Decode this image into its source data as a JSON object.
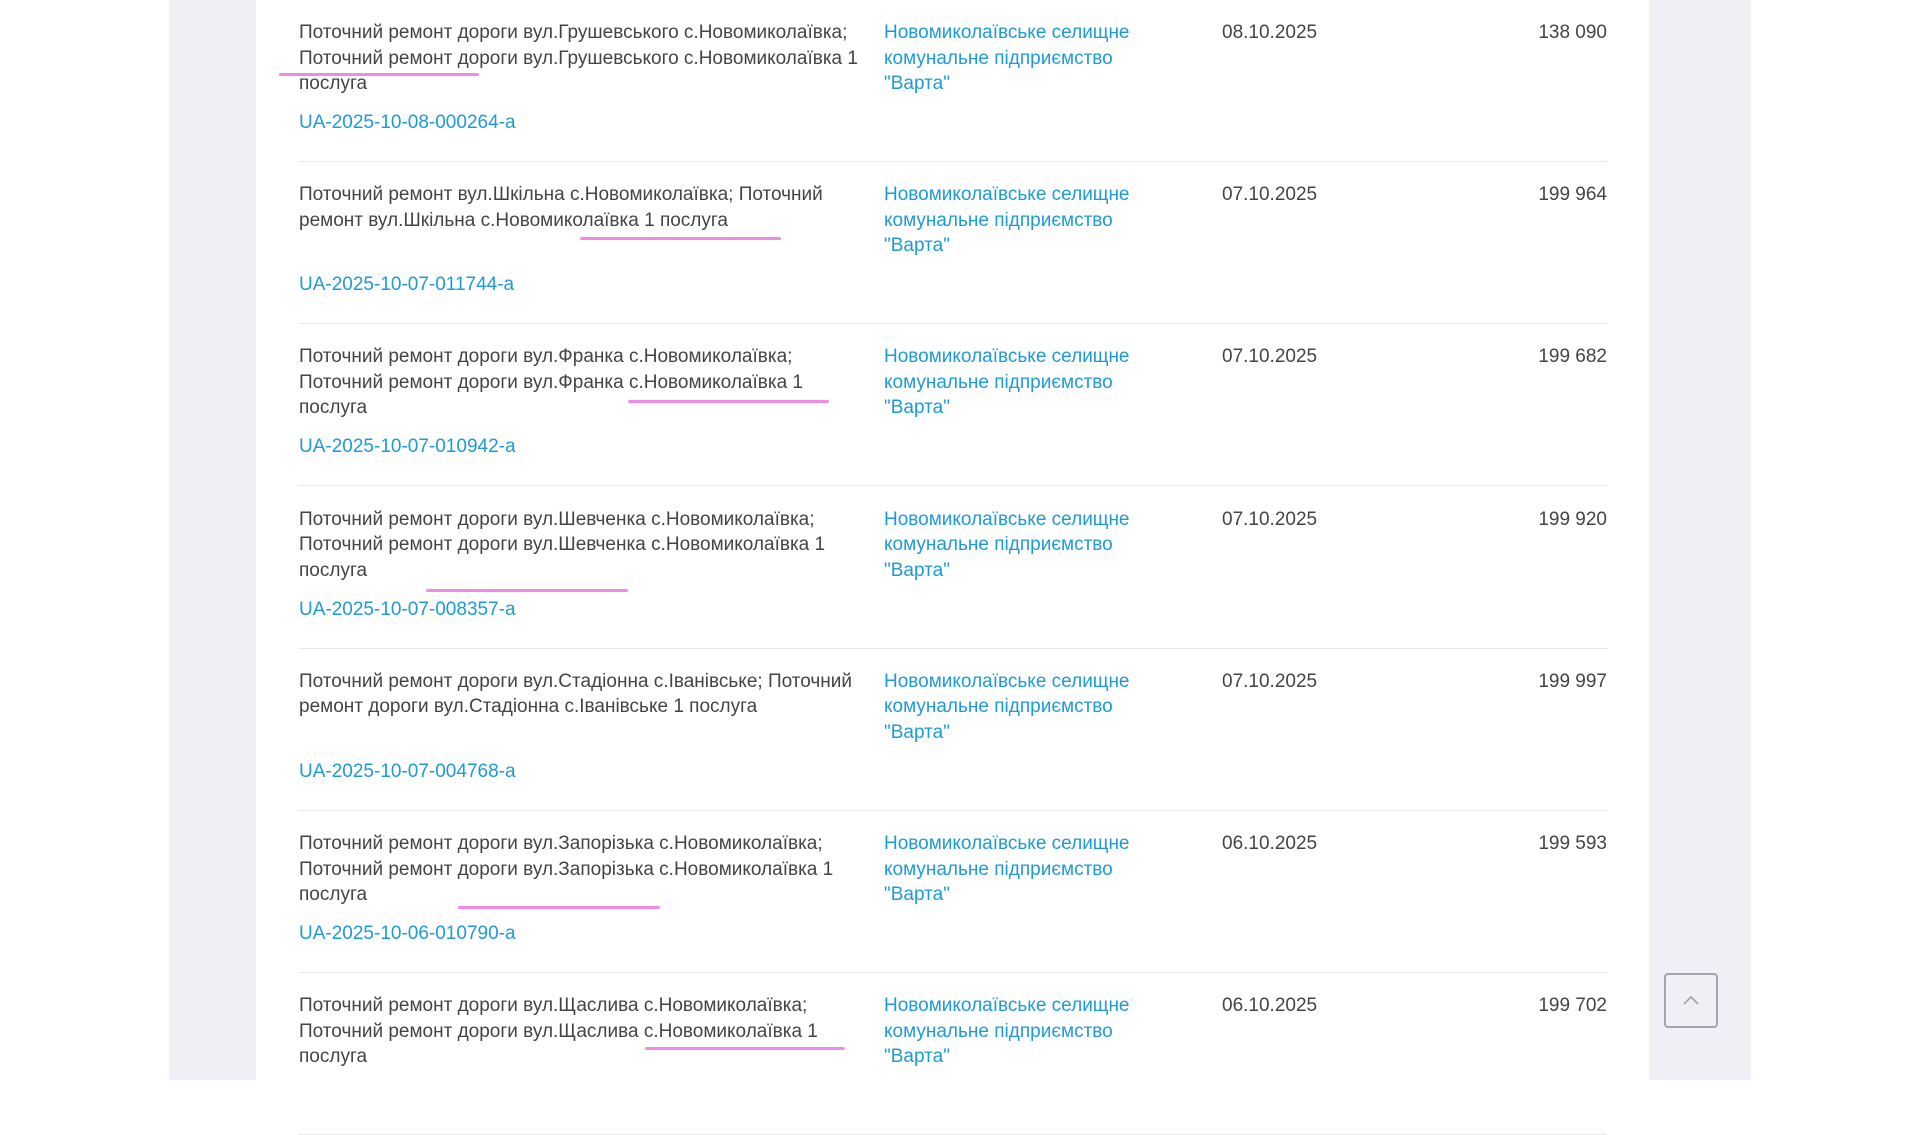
{
  "tenders": [
    {
      "title": "Поточний ремонт дороги вул.Грушевського с.Новомиколаївка; Поточний ремонт дороги вул.Грушевського с.Новомиколаївка 1 послуга",
      "id": "UA-2025-10-08-000264-a",
      "organization": "Новомиколаївське селищне комунальне підприємство \"Варта\"",
      "date": "08.10.2025",
      "amount": "138 090"
    },
    {
      "title": "Поточний ремонт вул.Шкільна с.Новомиколаївка; Поточний ремонт вул.Шкільна с.Новомиколаївка 1 послуга",
      "id": "UA-2025-10-07-011744-a",
      "organization": "Новомиколаївське селищне комунальне підприємство \"Варта\"",
      "date": "07.10.2025",
      "amount": "199 964"
    },
    {
      "title": "Поточний ремонт дороги вул.Франка с.Новомиколаївка; Поточний ремонт дороги вул.Франка с.Новомиколаївка 1 послуга",
      "id": "UA-2025-10-07-010942-a",
      "organization": "Новомиколаївське селищне комунальне підприємство \"Варта\"",
      "date": "07.10.2025",
      "amount": "199 682"
    },
    {
      "title": "Поточний ремонт дороги вул.Шевченка с.Новомиколаївка; Поточний ремонт дороги вул.Шевченка с.Новомиколаївка 1 послуга",
      "id": "UA-2025-10-07-008357-a",
      "organization": "Новомиколаївське селищне комунальне підприємство \"Варта\"",
      "date": "07.10.2025",
      "amount": "199 920"
    },
    {
      "title": "Поточний ремонт дороги вул.Стадіонна с.Іванівське; Поточний ремонт дороги вул.Стадіонна с.Іванівське 1 послуга",
      "id": "UA-2025-10-07-004768-a",
      "organization": "Новомиколаївське селищне комунальне підприємство \"Варта\"",
      "date": "07.10.2025",
      "amount": "199 997"
    },
    {
      "title": "Поточний ремонт дороги вул.Запорізька с.Новомиколаївка; Поточний ремонт дороги вул.Запорізька с.Новомиколаївка 1 послуга",
      "id": "UA-2025-10-06-010790-a",
      "organization": "Новомиколаївське селищне комунальне підприємство \"Варта\"",
      "date": "06.10.2025",
      "amount": "199 593"
    },
    {
      "title": "Поточний ремонт дороги вул.Щаслива с.Новомиколаївка; Поточний ремонт дороги вул.Щаслива с.Новомиколаївка 1 послуга",
      "id": "",
      "organization": "Новомиколаївське селищне комунальне підприємство \"Варта\"",
      "date": "06.10.2025",
      "amount": "199 702"
    }
  ],
  "annotation_color": "#f08ae6",
  "scroll_top_icon": "chevron-up-icon"
}
